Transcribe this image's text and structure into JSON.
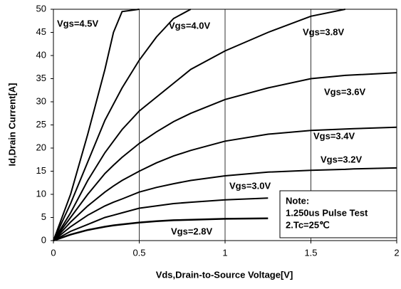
{
  "chart_data": {
    "type": "line",
    "y_label": "Id,Drain Current[A]",
    "x_label": "Vds,Drain-to-Source Voltage[V]",
    "x": [
      0,
      0.1,
      0.2,
      0.3,
      0.35,
      0.4,
      0.5,
      0.6,
      0.7,
      0.8,
      1,
      1.25,
      1.5,
      1.7,
      1.75,
      2
    ],
    "series": [
      {
        "name": "Vgs=4.5V",
        "color": "#000000",
        "values": [
          0,
          10,
          23,
          37,
          45,
          49.5,
          50,
          null,
          null,
          null,
          null,
          null,
          null,
          null,
          null,
          null
        ]
      },
      {
        "name": "Vgs=4.0V",
        "color": "#000000",
        "values": [
          0,
          8,
          17,
          26,
          29.5,
          33,
          39,
          44,
          48,
          50,
          null,
          null,
          null,
          null,
          null,
          null
        ]
      },
      {
        "name": "Vgs=3.8V",
        "color": "#000000",
        "values": [
          0,
          6,
          13,
          19,
          21.5,
          24,
          28,
          31,
          34,
          37,
          41,
          45,
          48.5,
          50,
          null,
          null
        ]
      },
      {
        "name": "Vgs=3.6V",
        "color": "#000000",
        "values": [
          0,
          5,
          10,
          14.5,
          16.3,
          18,
          21,
          23.5,
          25.7,
          27.5,
          30.5,
          33,
          35,
          35.7,
          35.8,
          36.3
        ]
      },
      {
        "name": "Vgs=3.4V",
        "color": "#000000",
        "values": [
          0,
          4,
          7.5,
          10.5,
          11.8,
          13,
          15,
          16.8,
          18.3,
          19.5,
          21.5,
          23,
          23.8,
          24.1,
          24.2,
          24.5
        ]
      },
      {
        "name": "Vgs=3.2V",
        "color": "#000000",
        "values": [
          0,
          3,
          5.5,
          7.5,
          8.3,
          9,
          10.5,
          11.5,
          12.3,
          13,
          14,
          14.8,
          15.2,
          15.4,
          15.5,
          15.7
        ]
      },
      {
        "name": "Vgs=3.0V",
        "color": "#000000",
        "values": [
          0,
          2,
          3.5,
          5,
          5.5,
          6,
          7,
          7.5,
          8,
          8.3,
          8.8,
          9.2,
          null,
          null,
          null,
          null
        ]
      },
      {
        "name": "Vgs=2.8V",
        "color": "#000000",
        "values": [
          0,
          1.3,
          2.3,
          3,
          3.3,
          3.5,
          3.9,
          4.2,
          4.4,
          4.5,
          4.7,
          4.8,
          null,
          null,
          null,
          null
        ]
      }
    ],
    "annotations": [
      "Note:",
      "1.250us Pulse Test",
      "2.Tc=25℃"
    ],
    "xlim": [
      0,
      2
    ],
    "xticks": [
      0,
      0.5,
      1,
      1.5,
      2
    ],
    "ylim": [
      0,
      50
    ],
    "yticks": [
      0,
      5,
      10,
      15,
      20,
      25,
      30,
      35,
      40,
      45,
      50
    ],
    "grid": "x"
  }
}
